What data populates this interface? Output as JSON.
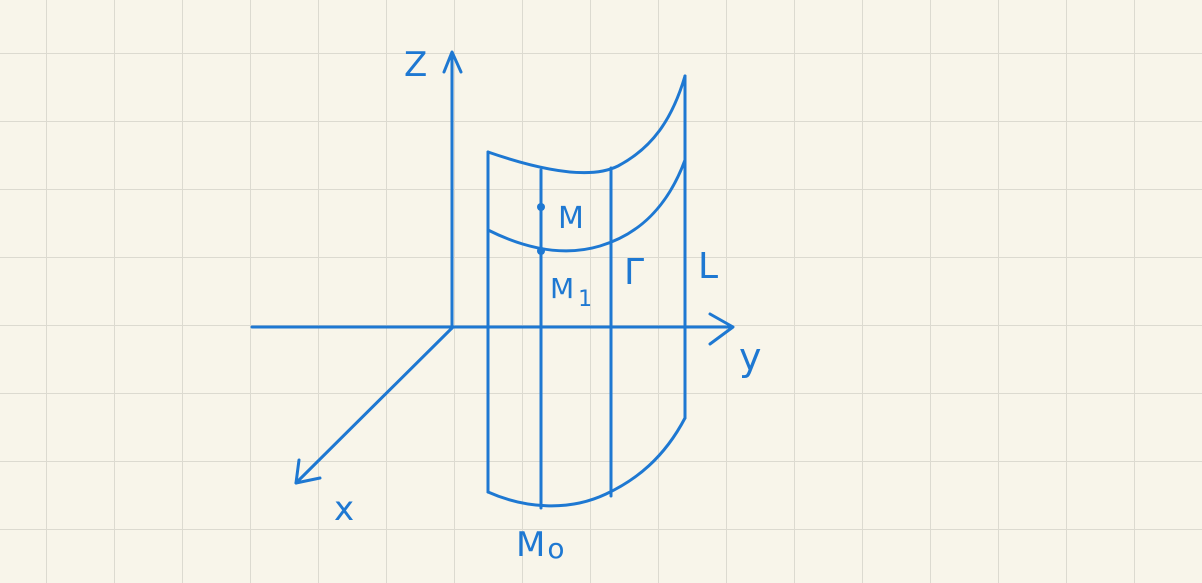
{
  "diagram": {
    "axes": {
      "z": "Z",
      "y": "y",
      "x": "x"
    },
    "labels": {
      "point_m": "M",
      "point_m1": "M",
      "point_m1_sub": "1",
      "point_m0": "M",
      "point_m0_sub": "o",
      "curve_gamma": "Γ",
      "curve_l": "L"
    },
    "colors": {
      "ink": "#1e78d2",
      "paper": "#f8f5ea",
      "grid": "#dcdad0"
    }
  }
}
